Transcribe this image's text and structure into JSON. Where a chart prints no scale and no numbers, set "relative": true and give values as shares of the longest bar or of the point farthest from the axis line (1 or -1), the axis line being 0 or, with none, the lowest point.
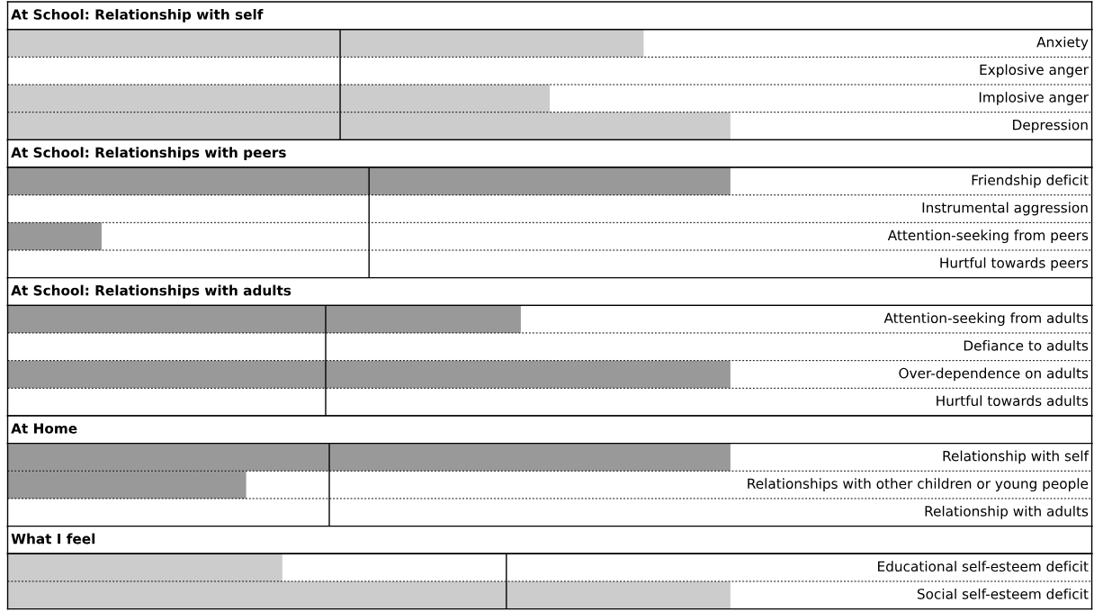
{
  "chart_data": [
    {
      "type": "bar",
      "orientation": "horizontal",
      "relative": true,
      "title": "At School: Relationship with self",
      "categories": [
        "Anxiety",
        "Explosive anger",
        "Implosive anger",
        "Depression"
      ],
      "values": [
        0.88,
        0,
        0.75,
        1.0
      ],
      "color": "#cccccc",
      "ref_lines": [
        {
          "axis": "x",
          "value": 0.46,
          "color": "#000000"
        }
      ],
      "tick_labels": false
    },
    {
      "type": "bar",
      "orientation": "horizontal",
      "relative": true,
      "title": "At School: Relationships with peers",
      "categories": [
        "Friendship deficit",
        "Instrumental aggression",
        "Attention-seeking from peers",
        "Hurtful towards peers"
      ],
      "values": [
        1.0,
        0,
        0.13,
        0
      ],
      "color": "#999999",
      "ref_lines": [
        {
          "axis": "x",
          "value": 0.5,
          "color": "#000000"
        }
      ],
      "tick_labels": false
    },
    {
      "type": "bar",
      "orientation": "horizontal",
      "relative": true,
      "title": "At School: Relationships with adults",
      "categories": [
        "Attention-seeking from adults",
        "Defiance to adults",
        "Over-dependence on adults",
        "Hurtful towards adults"
      ],
      "values": [
        0.71,
        0,
        1.0,
        0
      ],
      "color": "#999999",
      "ref_lines": [
        {
          "axis": "x",
          "value": 0.44,
          "color": "#000000"
        }
      ],
      "tick_labels": false
    },
    {
      "type": "bar",
      "orientation": "horizontal",
      "relative": true,
      "title": "At Home",
      "categories": [
        "Relationship with self",
        "Relationships with other children or young people",
        "Relationship with adults"
      ],
      "values": [
        1.0,
        0.33,
        0
      ],
      "color": "#999999",
      "ref_lines": [
        {
          "axis": "x",
          "value": 0.445,
          "color": "#000000"
        }
      ],
      "tick_labels": false
    },
    {
      "type": "bar",
      "orientation": "horizontal",
      "relative": true,
      "title": "What I feel",
      "categories": [
        "Educational self-esteem deficit",
        "Social self-esteem deficit"
      ],
      "values": [
        0.38,
        1.0
      ],
      "color": "#cccccc",
      "ref_lines": [
        {
          "axis": "x",
          "value": 0.69,
          "color": "#000000"
        }
      ],
      "tick_labels": false
    }
  ]
}
